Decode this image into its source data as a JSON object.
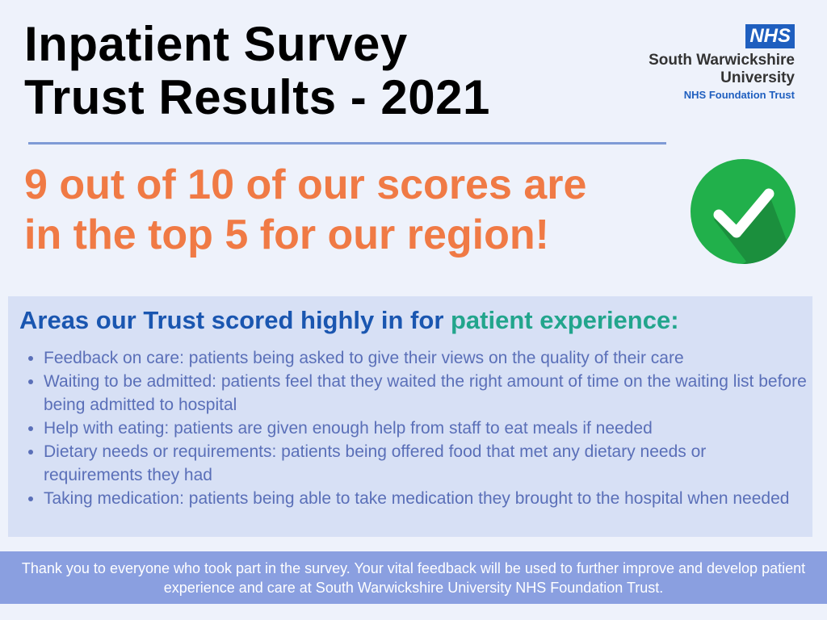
{
  "header": {
    "title": [
      "Inpatient Survey",
      "Trust Results - 2021"
    ]
  },
  "logo": {
    "badge": "NHS",
    "lines": [
      "South Warwickshire",
      "University"
    ],
    "subline": "NHS Foundation Trust"
  },
  "headline": [
    "9 out of 10 of our scores are",
    "in the top 5 for our region!"
  ],
  "areas": {
    "heading": "Areas our Trust scored highly in for ",
    "heading_highlight": "patient experience:",
    "items": [
      "Feedback on care: patients being asked to give their views on the quality of their care",
      "Waiting to be admitted: patients feel that they waited the right amount of time on the waiting list before being admitted to hospital",
      "Help with eating: patients are given enough help from staff to eat meals if needed",
      "Dietary needs or requirements: patients being offered food that met any dietary needs or requirements they had",
      "Taking medication: patients being able to take medication they brought to the hospital when needed"
    ]
  },
  "footer": "Thank you to everyone who took part in the survey. Your vital feedback will be used to further improve and develop patient experience and care at South Warwickshire University NHS Foundation Trust."
}
